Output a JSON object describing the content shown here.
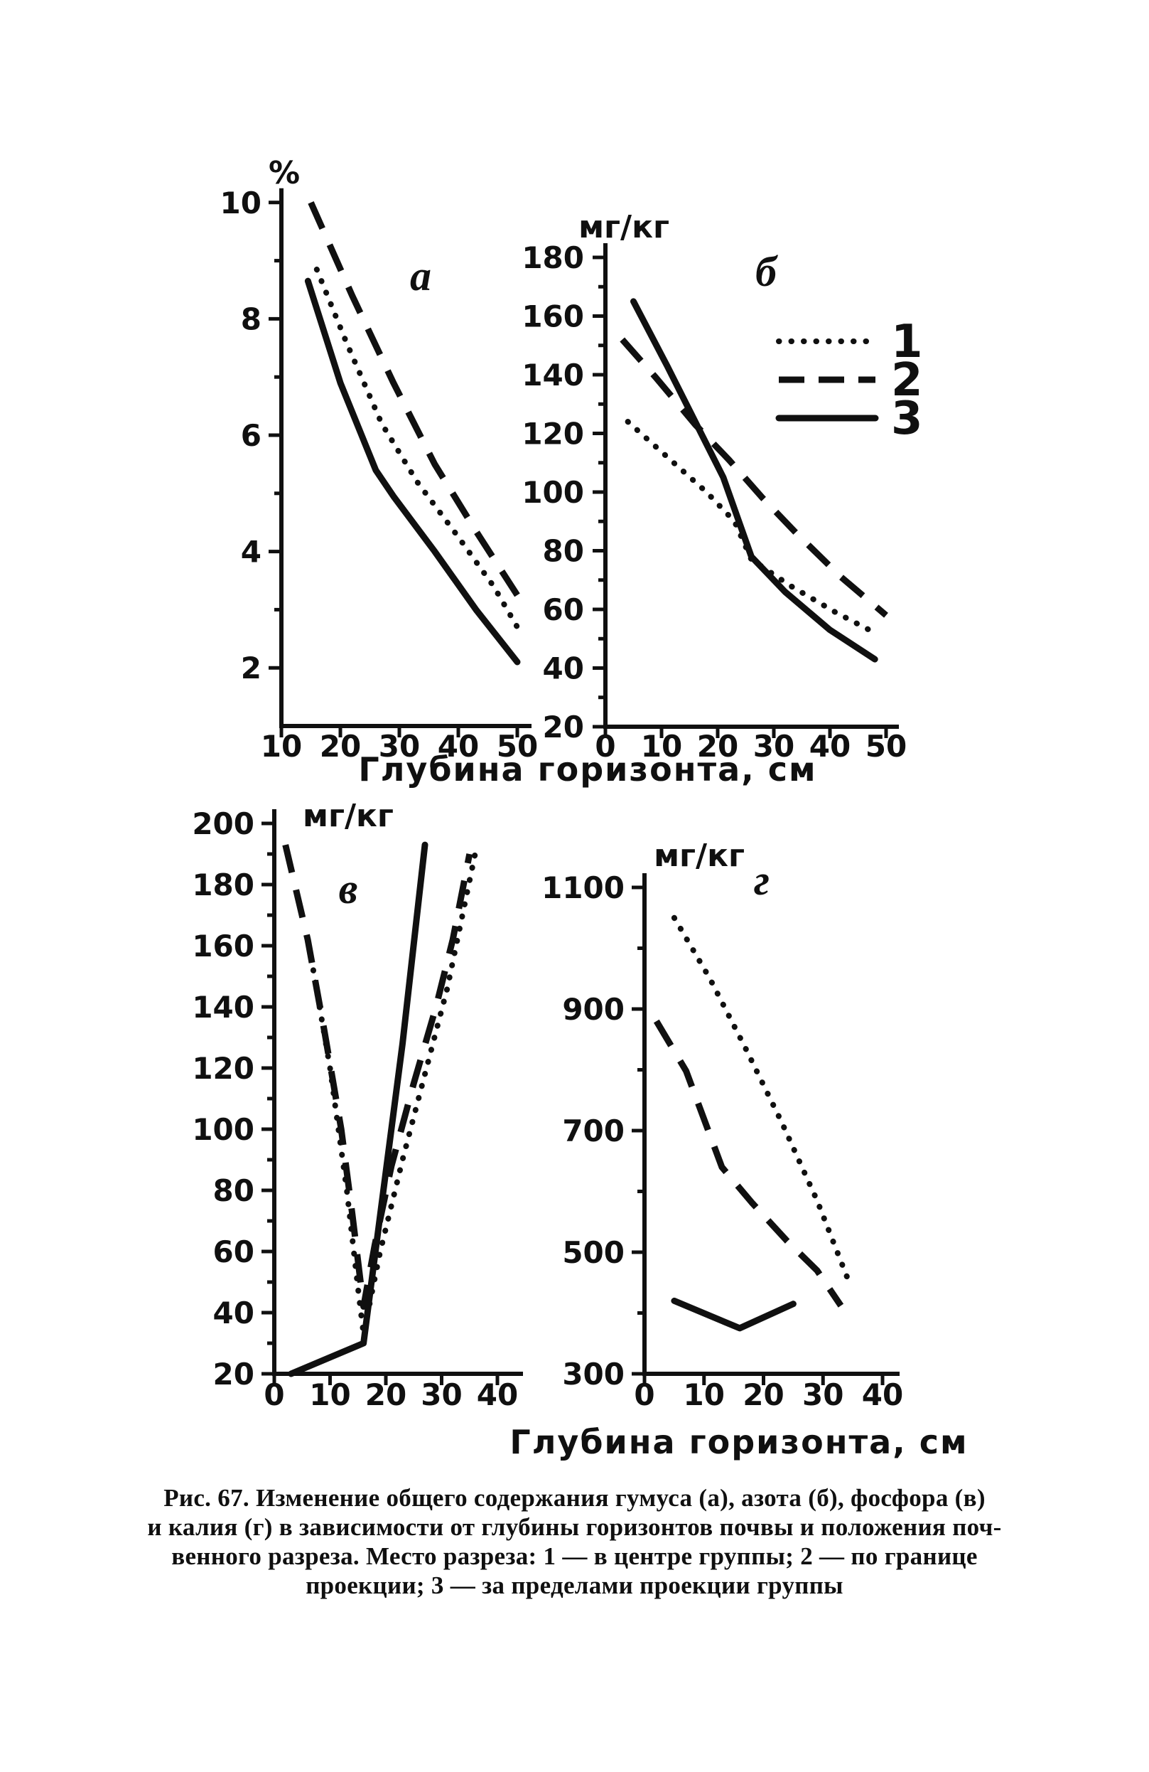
{
  "colors": {
    "ink": "#101010",
    "paper": "#ffffff"
  },
  "axis_labels": {
    "top_row_xlabel": "Глубина горизонта, см",
    "bottom_row_xlabel": "Глубина горизонта, см"
  },
  "legend": {
    "items": [
      {
        "label": "1",
        "style": "dotted"
      },
      {
        "label": "2",
        "style": "dashed"
      },
      {
        "label": "3",
        "style": "solid"
      }
    ]
  },
  "caption": {
    "lines": [
      "Рис. 67. Изменение общего содержания гумуса (а), азота (б), фосфора (в)",
      "и калия (г) в зависимости от глубины горизонтов почвы и положения поч-",
      "венного разреза. Место разреза: 1 — в центре группы; 2 — по границе",
      "проекции; 3 — за пределами проекции группы"
    ]
  },
  "chart_data": [
    {
      "id": "a",
      "type": "line",
      "panel_label": "а",
      "ylabel": "%",
      "xlabel": "Глубина горизонта, см",
      "xlim": [
        10,
        50
      ],
      "ylim": [
        1,
        10.6
      ],
      "xticks": [
        10,
        20,
        30,
        40,
        50
      ],
      "yticks": [
        2,
        4,
        6,
        8,
        10
      ],
      "yticks_minor": [
        3,
        5,
        7,
        9
      ],
      "series": [
        {
          "name": "1",
          "style": "dotted",
          "points": [
            [
              16,
              8.85
            ],
            [
              21,
              7.6
            ],
            [
              27,
              6.2
            ],
            [
              33,
              5.2
            ],
            [
              40,
              4.25
            ],
            [
              46,
              3.4
            ],
            [
              50,
              2.7
            ]
          ]
        },
        {
          "name": "2",
          "style": "dashed",
          "points": [
            [
              15,
              10.0
            ],
            [
              22,
              8.4
            ],
            [
              29,
              6.9
            ],
            [
              36,
              5.5
            ],
            [
              43,
              4.35
            ],
            [
              50,
              3.25
            ]
          ]
        },
        {
          "name": "3",
          "style": "solid",
          "points": [
            [
              14.5,
              8.65
            ],
            [
              20,
              6.9
            ],
            [
              26,
              5.4
            ],
            [
              29,
              4.95
            ],
            [
              36,
              4.0
            ],
            [
              43,
              3.0
            ],
            [
              50,
              2.1
            ]
          ]
        }
      ]
    },
    {
      "id": "b",
      "type": "line",
      "panel_label": "б",
      "ylabel": "мг/кг",
      "xlabel": "Глубина горизонта, см",
      "xlim": [
        0,
        50
      ],
      "ylim": [
        20,
        184
      ],
      "xticks": [
        0,
        10,
        20,
        30,
        40,
        50
      ],
      "yticks": [
        20,
        40,
        60,
        80,
        100,
        120,
        140,
        160,
        180
      ],
      "yticks_minor": [
        30,
        50,
        70,
        90,
        110,
        130,
        150,
        170
      ],
      "series": [
        {
          "name": "1",
          "style": "dotted",
          "points": [
            [
              4,
              124
            ],
            [
              11,
              112
            ],
            [
              18,
              100
            ],
            [
              23,
              90
            ],
            [
              26,
              77
            ],
            [
              33,
              68
            ],
            [
              41,
              59
            ],
            [
              48,
              52
            ]
          ]
        },
        {
          "name": "2",
          "style": "dashed",
          "points": [
            [
              3,
              152
            ],
            [
              9,
              139
            ],
            [
              16,
              123
            ],
            [
              22,
              111
            ],
            [
              28,
              98
            ],
            [
              34,
              86
            ],
            [
              42,
              71
            ],
            [
              50,
              58
            ]
          ]
        },
        {
          "name": "3",
          "style": "solid",
          "points": [
            [
              5,
              165
            ],
            [
              11,
              143
            ],
            [
              16,
              124
            ],
            [
              21,
              105
            ],
            [
              26,
              78
            ],
            [
              32,
              66
            ],
            [
              40,
              53
            ],
            [
              48,
              43
            ]
          ]
        }
      ]
    },
    {
      "id": "v",
      "type": "line",
      "panel_label": "в",
      "ylabel": "мг/кг",
      "xlabel": "Глубина горизонта, см",
      "xlim": [
        0,
        40
      ],
      "ylim": [
        20,
        200
      ],
      "xticks": [
        0,
        10,
        20,
        30,
        40
      ],
      "yticks": [
        20,
        40,
        60,
        80,
        100,
        120,
        140,
        160,
        180,
        200
      ],
      "yticks_minor": [
        30,
        50,
        70,
        90,
        110,
        130,
        150,
        170,
        190
      ],
      "series": [
        {
          "name": "1",
          "style": "dotted",
          "points": [
            [
              7,
              152
            ],
            [
              10,
              120
            ],
            [
              13,
              80
            ],
            [
              15,
              48
            ],
            [
              16,
              33
            ],
            [
              19,
              60
            ],
            [
              23,
              90
            ],
            [
              27,
              118
            ],
            [
              31,
              146
            ],
            [
              36,
              190
            ]
          ]
        },
        {
          "name": "2",
          "style": "dashed",
          "points": [
            [
              2,
              193
            ],
            [
              6,
              162
            ],
            [
              9,
              132
            ],
            [
              12,
              100
            ],
            [
              14,
              72
            ],
            [
              16,
              42
            ],
            [
              18,
              62
            ],
            [
              21,
              88
            ],
            [
              25,
              115
            ],
            [
              29,
              140
            ],
            [
              32,
              162
            ],
            [
              35,
              190
            ]
          ]
        },
        {
          "name": "3",
          "style": "solid",
          "points": [
            [
              3,
              20
            ],
            [
              16,
              30
            ],
            [
              19,
              72
            ],
            [
              23,
              128
            ],
            [
              27,
              193
            ]
          ]
        }
      ]
    },
    {
      "id": "g",
      "type": "line",
      "panel_label": "г",
      "ylabel": "мг/кг",
      "xlabel": "Глубина горизонта, см",
      "xlim": [
        0,
        40
      ],
      "ylim": [
        300,
        1100
      ],
      "xticks": [
        0,
        10,
        20,
        30,
        40
      ],
      "yticks": [
        300,
        500,
        700,
        900,
        1100
      ],
      "yticks_minor": [
        400,
        600,
        800,
        1000
      ],
      "series": [
        {
          "name": "1",
          "style": "dotted",
          "points": [
            [
              5,
              1050
            ],
            [
              11,
              950
            ],
            [
              17,
              835
            ],
            [
              23,
              715
            ],
            [
              29,
              585
            ],
            [
              34,
              460
            ]
          ]
        },
        {
          "name": "2",
          "style": "dashed",
          "points": [
            [
              2,
              880
            ],
            [
              7,
              798
            ],
            [
              13,
              640
            ],
            [
              18,
              582
            ],
            [
              24,
              518
            ],
            [
              29,
              470
            ],
            [
              33,
              412
            ]
          ]
        },
        {
          "name": "3",
          "style": "solid",
          "points": [
            [
              5,
              420
            ],
            [
              16,
              375
            ],
            [
              25,
              415
            ]
          ]
        }
      ]
    }
  ]
}
